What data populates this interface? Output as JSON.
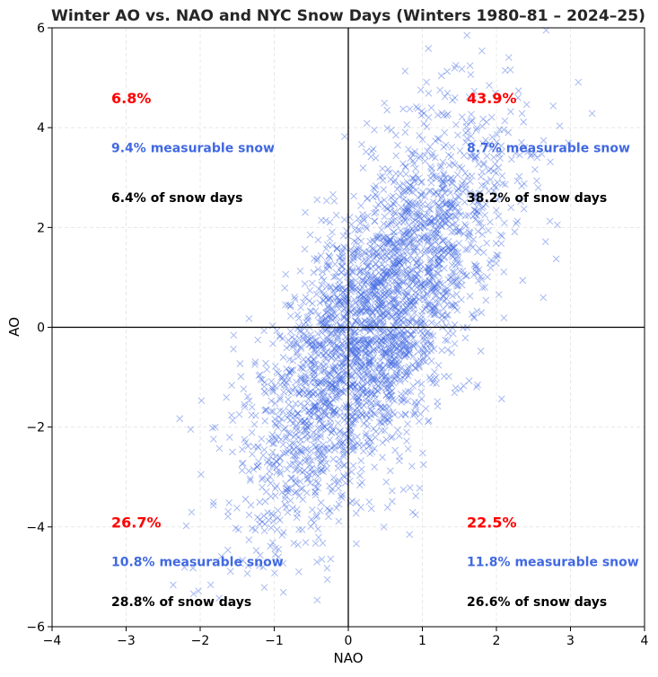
{
  "chart_data": {
    "type": "scatter",
    "title": "Winter AO vs. NAO and NYC Snow Days (Winters 1980–81 – 2024–25)",
    "xlabel": "NAO",
    "ylabel": "AO",
    "xlim": [
      -4,
      4
    ],
    "ylim": [
      -6,
      6
    ],
    "xticks": [
      "−4",
      "−3",
      "−2",
      "−1",
      "0",
      "1",
      "2",
      "3",
      "4"
    ],
    "yticks": [
      "−6",
      "−4",
      "−2",
      "0",
      "2",
      "4",
      "6"
    ],
    "xtick_values": [
      -4,
      -3,
      -2,
      -1,
      0,
      1,
      2,
      3,
      4
    ],
    "ytick_values": [
      -6,
      -4,
      -2,
      0,
      2,
      4,
      6
    ],
    "grid": true,
    "marker": "x",
    "point_color": "#4169e1",
    "reference_lines": {
      "x": 0,
      "y": 0
    },
    "point_distribution": {
      "n": 3000,
      "nao_mean": 0.35,
      "nao_sd": 0.85,
      "ao_mean": 0.05,
      "ao_sd": 2.0,
      "correlation": 0.7
    },
    "quadrants": [
      {
        "name": "top-left",
        "nao": -3.2,
        "share": "6.8%",
        "measurable": "9.4% measurable snow",
        "snow_days": "6.4% of snow days",
        "ao_rows": [
          4.6,
          3.6,
          2.6
        ]
      },
      {
        "name": "top-right",
        "nao": 1.6,
        "share": "43.9%",
        "measurable": "8.7% measurable snow",
        "snow_days": "38.2% of snow days",
        "ao_rows": [
          4.6,
          3.6,
          2.6
        ]
      },
      {
        "name": "bottom-left",
        "nao": -3.2,
        "share": "26.7%",
        "measurable": "10.8% measurable snow",
        "snow_days": "28.8% of snow days",
        "ao_rows": [
          -3.9,
          -4.7,
          -5.5
        ]
      },
      {
        "name": "bottom-right",
        "nao": 1.6,
        "share": "22.5%",
        "measurable": "11.8% measurable snow",
        "snow_days": "26.6% of snow days",
        "ao_rows": [
          -3.9,
          -4.7,
          -5.5
        ]
      }
    ],
    "colors": {
      "share": "#ff0000",
      "measurable": "#4169e1",
      "snow_days": "#000000"
    }
  }
}
